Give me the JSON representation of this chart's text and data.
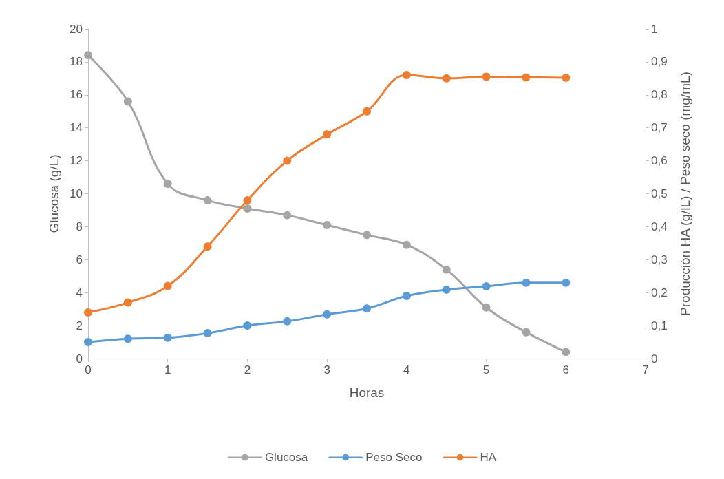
{
  "chart_data": {
    "type": "line",
    "xlabel": "Horas",
    "ylabel": "Glucosa (g/L)",
    "y2label": "Producción HA (g/lL) / Peso seco (mg/mL)",
    "x": [
      0,
      0.5,
      1,
      1.5,
      2,
      2.5,
      3,
      3.5,
      4,
      4.5,
      5,
      5.5,
      6
    ],
    "series": [
      {
        "name": "Glucosa",
        "color": "#a5a5a5",
        "values": [
          18.4,
          15.6,
          10.6,
          9.6,
          9.1,
          8.7,
          8.1,
          7.5,
          6.9,
          5.4,
          3.1,
          1.6,
          0.4
        ]
      },
      {
        "name": "Peso Seco",
        "color": "#5b9bd5",
        "axis": "y2",
        "values": [
          0.05,
          0.06,
          0.063,
          0.077,
          0.1,
          0.113,
          0.134,
          0.152,
          0.19,
          0.209,
          0.219,
          0.23,
          0.23
        ]
      },
      {
        "name": "HA",
        "color": "#ed7d31",
        "axis": "y2",
        "values": [
          0.14,
          0.17,
          0.22,
          0.34,
          0.48,
          0.6,
          0.68,
          0.75,
          0.86,
          0.85,
          0.855,
          0.853,
          0.852
        ]
      }
    ],
    "xlim": [
      0,
      7
    ],
    "xticks": [
      0,
      1,
      2,
      3,
      4,
      5,
      6,
      7
    ],
    "ylim": [
      0,
      20
    ],
    "yticks": [
      0,
      2,
      4,
      6,
      8,
      10,
      12,
      14,
      16,
      18,
      20
    ],
    "y2lim": [
      0,
      1
    ],
    "y2ticks": [
      0,
      {
        "value": 0.1,
        "label": "0,1"
      },
      {
        "value": 0.2,
        "label": "0,2"
      },
      {
        "value": 0.3,
        "label": "0,3"
      },
      {
        "value": 0.4,
        "label": "0,4"
      },
      {
        "value": 0.5,
        "label": "0,5"
      },
      {
        "value": 0.6,
        "label": "0,6"
      },
      {
        "value": 0.7,
        "label": "0,7"
      },
      {
        "value": 0.8,
        "label": "0,8"
      },
      {
        "value": 0.9,
        "label": "0,9"
      },
      1
    ],
    "legend": "bottom",
    "marker": "circle",
    "line_style": "solid",
    "grid": false
  }
}
